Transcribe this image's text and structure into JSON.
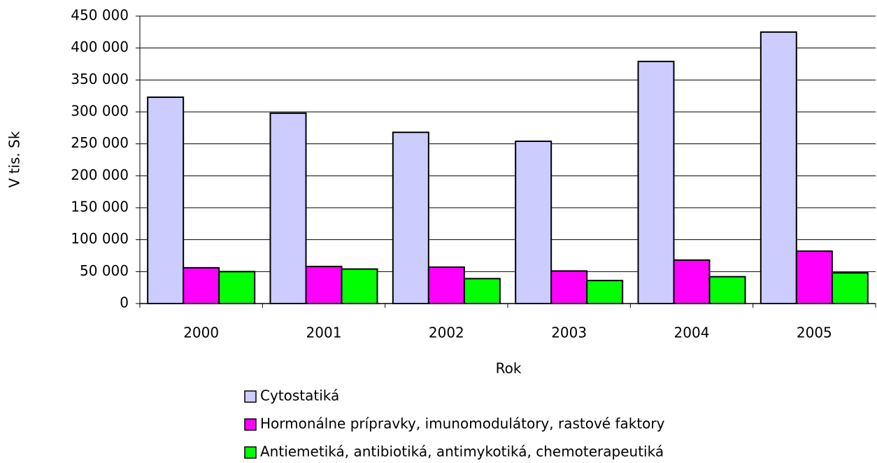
{
  "chart_data": {
    "type": "bar",
    "xlabel": "Rok",
    "ylabel": "V tis. Sk",
    "categories": [
      "2000",
      "2001",
      "2002",
      "2003",
      "2004",
      "2005"
    ],
    "series": [
      {
        "name": "Cytostatiká",
        "color": "#ccccff",
        "values": [
          323000,
          298000,
          268000,
          254000,
          379000,
          425000
        ]
      },
      {
        "name": "Hormonálne prípravky, imunomodulátory, rastové faktory",
        "color": "#ff00ff",
        "values": [
          56000,
          58000,
          57000,
          51000,
          68000,
          82000
        ]
      },
      {
        "name": "Antiemetiká, antibiotiká, antimykotiká, chemoterapeutiká",
        "color": "#00ff00",
        "values": [
          50000,
          54000,
          39000,
          36000,
          42000,
          48000
        ]
      }
    ],
    "ylim": [
      0,
      450000
    ],
    "yticks": [
      0,
      {
        "value": 50000,
        "label": "50 000"
      },
      {
        "value": 100000,
        "label": "100 000"
      },
      {
        "value": 150000,
        "label": "150 000"
      },
      {
        "value": 200000,
        "label": "200 000"
      },
      {
        "value": 250000,
        "label": "250 000"
      },
      {
        "value": 300000,
        "label": "300 000"
      },
      {
        "value": 350000,
        "label": "350 000"
      },
      {
        "value": 400000,
        "label": "400 000"
      },
      {
        "value": 450000,
        "label": "450 000"
      }
    ],
    "grid": true,
    "legend": "bottom"
  }
}
